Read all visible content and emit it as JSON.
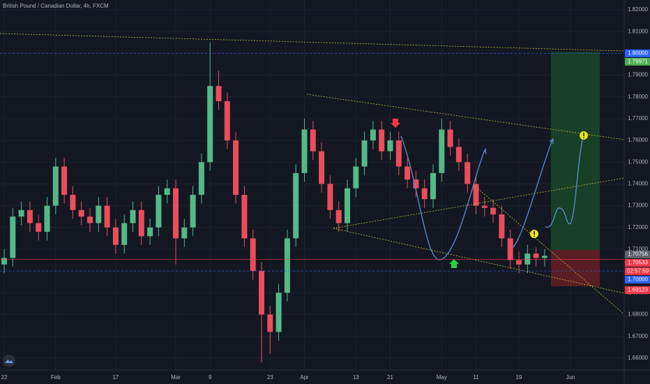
{
  "chart_data": {
    "type": "candlestick",
    "title": "British Pound / Canadian Dollar, 4h, FXCM",
    "categories": [
      "22",
      null,
      null,
      null,
      null,
      null,
      "Feb",
      null,
      null,
      null,
      null,
      null,
      null,
      "17",
      null,
      null,
      null,
      null,
      null,
      null,
      "Mar",
      null,
      null,
      null,
      "9",
      null,
      null,
      null,
      null,
      null,
      null,
      "23",
      null,
      null,
      null,
      "Apr",
      null,
      null,
      null,
      null,
      null,
      "13",
      null,
      null,
      null,
      "21",
      null,
      null,
      null,
      null,
      null,
      "May",
      null,
      null,
      null,
      "11",
      null,
      null,
      null,
      null,
      "19",
      null,
      null,
      null,
      null,
      null,
      "Jun",
      null,
      null,
      null
    ],
    "open": [
      1.703,
      1.706,
      1.725,
      1.728,
      1.722,
      1.718,
      1.73,
      1.748,
      1.735,
      1.728,
      1.725,
      1.722,
      1.73,
      1.72,
      1.712,
      1.722,
      1.728,
      1.716,
      1.72,
      1.735,
      1.738,
      1.715,
      1.72,
      1.735,
      1.75,
      1.785,
      1.778,
      1.76,
      1.735,
      1.715,
      1.7,
      1.68,
      1.672,
      1.69,
      1.715,
      1.745,
      1.765,
      1.755,
      1.74,
      1.728,
      1.722,
      1.738,
      1.748,
      1.76,
      1.765,
      1.755,
      1.76,
      1.748,
      1.742,
      1.738,
      1.733,
      1.745,
      1.765,
      1.757,
      1.75,
      1.74,
      1.73,
      1.729,
      1.726,
      1.715,
      1.705,
      1.703,
      1.708,
      1.706,
      null,
      null,
      null,
      null,
      null,
      null
    ],
    "high": [
      1.71,
      1.729,
      1.732,
      1.732,
      1.726,
      1.734,
      1.752,
      1.752,
      1.739,
      1.732,
      1.729,
      1.734,
      1.734,
      1.724,
      1.726,
      1.732,
      1.732,
      1.724,
      1.739,
      1.742,
      1.742,
      1.724,
      1.739,
      1.754,
      1.805,
      1.792,
      1.782,
      1.764,
      1.739,
      1.719,
      1.704,
      1.684,
      1.694,
      1.719,
      1.749,
      1.77,
      1.769,
      1.759,
      1.744,
      1.732,
      1.742,
      1.752,
      1.764,
      1.769,
      1.769,
      1.764,
      1.764,
      1.752,
      1.746,
      1.742,
      1.749,
      1.77,
      1.769,
      1.761,
      1.754,
      1.744,
      1.734,
      1.733,
      1.73,
      1.719,
      1.709,
      1.712,
      1.711,
      1.71,
      null,
      null,
      null,
      null,
      null,
      null
    ],
    "low": [
      1.699,
      1.702,
      1.721,
      1.718,
      1.714,
      1.714,
      1.726,
      1.731,
      1.724,
      1.721,
      1.718,
      1.718,
      1.716,
      1.708,
      1.708,
      1.718,
      1.712,
      1.712,
      1.716,
      1.731,
      1.703,
      1.711,
      1.716,
      1.731,
      1.746,
      1.774,
      1.756,
      1.731,
      1.711,
      1.696,
      1.658,
      1.662,
      1.668,
      1.686,
      1.711,
      1.741,
      1.751,
      1.736,
      1.724,
      1.718,
      1.718,
      1.734,
      1.744,
      1.756,
      1.751,
      1.751,
      1.744,
      1.738,
      1.734,
      1.729,
      1.729,
      1.741,
      1.753,
      1.746,
      1.736,
      1.726,
      1.725,
      1.722,
      1.711,
      1.701,
      1.699,
      1.699,
      1.702,
      1.702,
      null,
      null,
      null,
      null,
      null,
      null
    ],
    "close": [
      1.706,
      1.725,
      1.728,
      1.722,
      1.718,
      1.73,
      1.748,
      1.735,
      1.728,
      1.725,
      1.722,
      1.73,
      1.72,
      1.712,
      1.722,
      1.728,
      1.716,
      1.72,
      1.735,
      1.738,
      1.715,
      1.72,
      1.735,
      1.75,
      1.785,
      1.778,
      1.76,
      1.735,
      1.715,
      1.7,
      1.68,
      1.672,
      1.69,
      1.715,
      1.745,
      1.765,
      1.755,
      1.74,
      1.728,
      1.722,
      1.738,
      1.748,
      1.76,
      1.765,
      1.755,
      1.76,
      1.748,
      1.742,
      1.738,
      1.733,
      1.745,
      1.765,
      1.757,
      1.75,
      1.74,
      1.73,
      1.729,
      1.726,
      1.715,
      1.705,
      1.703,
      1.708,
      1.706,
      1.707,
      null,
      null,
      null,
      null,
      null,
      null
    ],
    "up_color": "#53b987",
    "down_color": "#eb4d5c",
    "ylim": [
      1.6545,
      1.8245
    ],
    "yticks": [
      {
        "value": 1.66,
        "label": "1.66000"
      },
      {
        "value": 1.67,
        "label": "1.67000"
      },
      {
        "value": 1.68,
        "label": "1.68000"
      },
      {
        "value": 1.69,
        "label": "1.69000"
      },
      {
        "value": 1.7,
        "label": "1.70000"
      },
      {
        "value": 1.71,
        "label": "1.71000"
      },
      {
        "value": 1.72,
        "label": "1.72000"
      },
      {
        "value": 1.73,
        "label": "1.73000"
      },
      {
        "value": 1.74,
        "label": "1.74000"
      },
      {
        "value": 1.75,
        "label": "1.75000"
      },
      {
        "value": 1.76,
        "label": "1.76000"
      },
      {
        "value": 1.77,
        "label": "1.77000"
      },
      {
        "value": 1.78,
        "label": "1.78000"
      },
      {
        "value": 1.79,
        "label": "1.79000"
      },
      {
        "value": 1.8,
        "label": "1.80000"
      },
      {
        "value": 1.81,
        "label": "1.81000"
      },
      {
        "value": 1.82,
        "label": "1.82000"
      }
    ],
    "grid": true,
    "price_labels": [
      {
        "value": 1.8,
        "label": "1.80000",
        "color": "#2962ff",
        "line": "dashed"
      },
      {
        "value": 1.79971,
        "label": "1.79971",
        "color": "#4caf50"
      },
      {
        "value": 1.70756,
        "label": "1.70756",
        "color": "#5d606b"
      },
      {
        "value": 1.70533,
        "label": "1.70533",
        "color": "#f23645",
        "line": "solid"
      },
      {
        "value": 1.7,
        "label": "1.70000",
        "color": "#2962ff",
        "line": "dashed"
      },
      {
        "value": 1.69123,
        "label": "1.69123",
        "color": "#f23645"
      }
    ],
    "countdown": "02:57:59"
  }
}
